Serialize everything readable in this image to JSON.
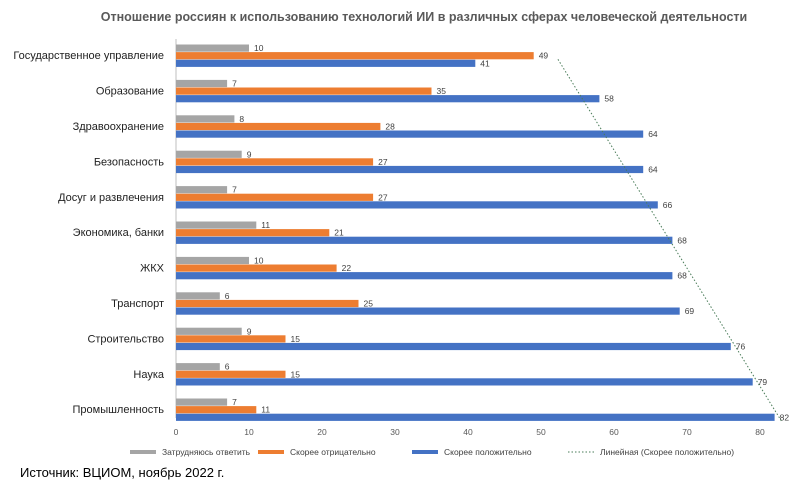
{
  "chart_data": {
    "type": "bar",
    "orientation": "horizontal",
    "title": "Отношение россиян к использованию технологий ИИ в различных сферах человеческой  деятельности",
    "categories": [
      "Государственное управление",
      "Образование",
      "Здравоохранение",
      "Безопасность",
      "Досуг и развлечения",
      "Экономика, банки",
      "ЖКХ",
      "Транспорт",
      "Строительство",
      "Наука",
      "Промышленность"
    ],
    "series": [
      {
        "name": "Затрудняюсь ответить",
        "color": "#a5a5a5",
        "values": [
          10,
          7,
          8,
          9,
          7,
          11,
          10,
          6,
          9,
          6,
          7
        ]
      },
      {
        "name": "Скорее отрицательно",
        "color": "#ed7d31",
        "values": [
          49,
          35,
          28,
          27,
          27,
          21,
          22,
          25,
          15,
          15,
          11
        ]
      },
      {
        "name": "Скорее положительно",
        "color": "#4472c4",
        "values": [
          41,
          58,
          64,
          64,
          66,
          68,
          68,
          69,
          76,
          79,
          82
        ]
      }
    ],
    "trendline": {
      "name": "Линейная (Скорее положительно)",
      "series": "Скорее положительно",
      "style": "dotted",
      "color": "#4a7c59"
    },
    "xlim": [
      0,
      80
    ],
    "xticks": [
      0,
      10,
      20,
      30,
      40,
      50,
      60,
      70,
      80
    ],
    "grid": false,
    "legend_position": "bottom",
    "data_labels": true
  },
  "source": "Источник: ВЦИОМ, ноябрь 2022 г."
}
